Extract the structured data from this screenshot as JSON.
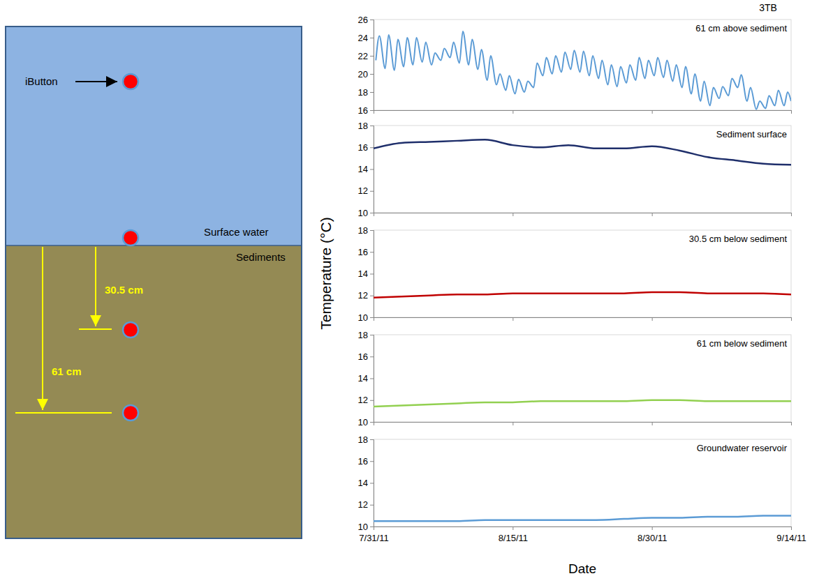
{
  "figure": {
    "title": "3TB",
    "y_label": "Temperature (°C)",
    "x_label": "Date"
  },
  "diagram": {
    "sensor_label": "iButton",
    "water_label": "Surface water",
    "sediment_label": "Sediments",
    "depth_labels": [
      "30.5 cm",
      "61 cm"
    ]
  },
  "chart_data": [
    {
      "type": "line",
      "title": "61 cm above sediment",
      "tick_labels": "y",
      "xlim": [
        "2011-07-31T00:00",
        "2011-09-14T00:00"
      ],
      "xticks": [
        {
          "value": "2011-07-31T00:00",
          "label": "7/31/11"
        },
        {
          "value": "2011-08-15T00:00",
          "label": "8/15/11"
        },
        {
          "value": "2011-08-30T00:00",
          "label": "8/30/11"
        },
        {
          "value": "2011-09-14T00:00",
          "label": "9/14/11"
        }
      ],
      "ylim": [
        16,
        26
      ],
      "yticks": [
        16,
        18,
        20,
        22,
        24,
        26
      ],
      "x": [
        "2011-07-31T06:00",
        "2011-07-31T15:00",
        "2011-08-01T06:00",
        "2011-08-01T15:00",
        "2011-08-02T06:00",
        "2011-08-02T15:00",
        "2011-08-03T06:00",
        "2011-08-03T15:00",
        "2011-08-04T06:00",
        "2011-08-04T15:00",
        "2011-08-05T06:00",
        "2011-08-05T15:00",
        "2011-08-06T06:00",
        "2011-08-06T15:00",
        "2011-08-07T06:00",
        "2011-08-07T15:00",
        "2011-08-08T06:00",
        "2011-08-08T15:00",
        "2011-08-09T06:00",
        "2011-08-09T15:00",
        "2011-08-10T06:00",
        "2011-08-10T15:00",
        "2011-08-11T06:00",
        "2011-08-11T15:00",
        "2011-08-12T06:00",
        "2011-08-12T15:00",
        "2011-08-13T06:00",
        "2011-08-13T15:00",
        "2011-08-14T06:00",
        "2011-08-14T15:00",
        "2011-08-15T06:00",
        "2011-08-15T15:00",
        "2011-08-16T06:00",
        "2011-08-16T15:00",
        "2011-08-17T06:00",
        "2011-08-17T15:00",
        "2011-08-18T06:00",
        "2011-08-18T15:00",
        "2011-08-19T06:00",
        "2011-08-19T15:00",
        "2011-08-20T06:00",
        "2011-08-20T15:00",
        "2011-08-21T06:00",
        "2011-08-21T15:00",
        "2011-08-22T06:00",
        "2011-08-22T15:00",
        "2011-08-23T06:00",
        "2011-08-23T15:00",
        "2011-08-24T06:00",
        "2011-08-24T15:00",
        "2011-08-25T06:00",
        "2011-08-25T15:00",
        "2011-08-26T06:00",
        "2011-08-26T15:00",
        "2011-08-27T06:00",
        "2011-08-27T15:00",
        "2011-08-28T06:00",
        "2011-08-28T15:00",
        "2011-08-29T06:00",
        "2011-08-29T15:00",
        "2011-08-30T06:00",
        "2011-08-30T15:00",
        "2011-08-31T06:00",
        "2011-08-31T15:00",
        "2011-09-01T06:00",
        "2011-09-01T15:00",
        "2011-09-02T06:00",
        "2011-09-02T15:00",
        "2011-09-03T06:00",
        "2011-09-03T15:00",
        "2011-09-04T06:00",
        "2011-09-04T15:00",
        "2011-09-05T06:00",
        "2011-09-05T15:00",
        "2011-09-06T06:00",
        "2011-09-06T15:00",
        "2011-09-07T06:00",
        "2011-09-07T15:00",
        "2011-09-08T06:00",
        "2011-09-08T15:00",
        "2011-09-09T06:00",
        "2011-09-09T15:00",
        "2011-09-10T06:00",
        "2011-09-10T15:00",
        "2011-09-11T06:00",
        "2011-09-11T15:00",
        "2011-09-12T06:00",
        "2011-09-12T15:00",
        "2011-09-13T06:00",
        "2011-09-13T15:00",
        "2011-09-14T00:00"
      ],
      "series": [
        {
          "color": "#5b9bd5",
          "values": [
            21.5,
            24.2,
            20.6,
            24.3,
            20.4,
            23.8,
            20.8,
            24.0,
            21.0,
            24.0,
            21.3,
            23.5,
            21.0,
            22.3,
            21.5,
            22.8,
            21.8,
            23.5,
            21.2,
            24.7,
            21.0,
            23.8,
            20.5,
            22.7,
            19.3,
            22.0,
            18.8,
            20.0,
            18.2,
            19.8,
            17.8,
            19.4,
            18.0,
            19.2,
            18.5,
            21.2,
            19.8,
            21.8,
            20.0,
            22.0,
            20.2,
            22.4,
            20.5,
            22.6,
            20.2,
            22.5,
            19.8,
            22.0,
            19.5,
            21.5,
            18.8,
            21.0,
            18.6,
            20.8,
            19.0,
            21.0,
            19.3,
            21.8,
            19.5,
            21.5,
            19.8,
            21.8,
            19.6,
            21.5,
            19.2,
            21.0,
            18.5,
            20.8,
            17.8,
            20.0,
            17.0,
            19.2,
            16.5,
            18.5,
            17.3,
            18.6,
            17.6,
            19.5,
            18.5,
            19.9,
            17.0,
            18.5,
            16.1,
            17.0,
            16.2,
            17.6,
            16.5,
            18.2,
            16.5,
            18.0,
            17.0
          ]
        }
      ]
    },
    {
      "type": "line",
      "title": "Sediment surface",
      "tick_labels": "y",
      "xlim": [
        "2011-07-31T00:00",
        "2011-09-14T00:00"
      ],
      "xticks": [
        {
          "value": "2011-07-31T00:00",
          "label": "7/31/11"
        },
        {
          "value": "2011-08-15T00:00",
          "label": "8/15/11"
        },
        {
          "value": "2011-08-30T00:00",
          "label": "8/30/11"
        },
        {
          "value": "2011-09-14T00:00",
          "label": "9/14/11"
        }
      ],
      "ylim": [
        10,
        18
      ],
      "yticks": [
        10,
        12,
        14,
        16,
        18
      ],
      "x": [
        "2011-07-31T00:00",
        "2011-08-03T00:00",
        "2011-08-06T00:00",
        "2011-08-09T00:00",
        "2011-08-12T00:00",
        "2011-08-15T00:00",
        "2011-08-18T00:00",
        "2011-08-21T00:00",
        "2011-08-24T00:00",
        "2011-08-27T00:00",
        "2011-08-30T00:00",
        "2011-09-02T00:00",
        "2011-09-05T00:00",
        "2011-09-08T00:00",
        "2011-09-11T00:00",
        "2011-09-14T00:00"
      ],
      "series": [
        {
          "color": "#1f2f6b",
          "values": [
            15.9,
            16.4,
            16.5,
            16.6,
            16.7,
            16.2,
            16.0,
            16.2,
            15.9,
            15.9,
            16.1,
            15.7,
            15.1,
            14.8,
            14.5,
            14.4
          ]
        }
      ]
    },
    {
      "type": "line",
      "title": "30.5 cm below sediment",
      "tick_labels": "y",
      "xlim": [
        "2011-07-31T00:00",
        "2011-09-14T00:00"
      ],
      "xticks": [
        {
          "value": "2011-07-31T00:00",
          "label": "7/31/11"
        },
        {
          "value": "2011-08-15T00:00",
          "label": "8/15/11"
        },
        {
          "value": "2011-08-30T00:00",
          "label": "8/30/11"
        },
        {
          "value": "2011-09-14T00:00",
          "label": "9/14/11"
        }
      ],
      "ylim": [
        10,
        18
      ],
      "yticks": [
        10,
        12,
        14,
        16,
        18
      ],
      "x": [
        "2011-07-31T00:00",
        "2011-08-03T00:00",
        "2011-08-06T00:00",
        "2011-08-09T00:00",
        "2011-08-12T00:00",
        "2011-08-15T00:00",
        "2011-08-18T00:00",
        "2011-08-21T00:00",
        "2011-08-24T00:00",
        "2011-08-27T00:00",
        "2011-08-30T00:00",
        "2011-09-02T00:00",
        "2011-09-05T00:00",
        "2011-09-08T00:00",
        "2011-09-11T00:00",
        "2011-09-14T00:00"
      ],
      "series": [
        {
          "color": "#c00000",
          "values": [
            11.8,
            11.9,
            12.0,
            12.1,
            12.1,
            12.2,
            12.2,
            12.2,
            12.2,
            12.2,
            12.3,
            12.3,
            12.2,
            12.2,
            12.2,
            12.1
          ]
        }
      ]
    },
    {
      "type": "line",
      "title": "61 cm below sediment",
      "tick_labels": "y",
      "xlim": [
        "2011-07-31T00:00",
        "2011-09-14T00:00"
      ],
      "xticks": [
        {
          "value": "2011-07-31T00:00",
          "label": "7/31/11"
        },
        {
          "value": "2011-08-15T00:00",
          "label": "8/15/11"
        },
        {
          "value": "2011-08-30T00:00",
          "label": "8/30/11"
        },
        {
          "value": "2011-09-14T00:00",
          "label": "9/14/11"
        }
      ],
      "ylim": [
        10,
        18
      ],
      "yticks": [
        10,
        12,
        14,
        16,
        18
      ],
      "x": [
        "2011-07-31T00:00",
        "2011-08-03T00:00",
        "2011-08-06T00:00",
        "2011-08-09T00:00",
        "2011-08-12T00:00",
        "2011-08-15T00:00",
        "2011-08-18T00:00",
        "2011-08-21T00:00",
        "2011-08-24T00:00",
        "2011-08-27T00:00",
        "2011-08-30T00:00",
        "2011-09-02T00:00",
        "2011-09-05T00:00",
        "2011-09-08T00:00",
        "2011-09-11T00:00",
        "2011-09-14T00:00"
      ],
      "series": [
        {
          "color": "#92d050",
          "values": [
            11.4,
            11.5,
            11.6,
            11.7,
            11.8,
            11.8,
            11.9,
            11.9,
            11.9,
            11.9,
            12.0,
            12.0,
            11.9,
            11.9,
            11.9,
            11.9
          ]
        }
      ]
    },
    {
      "type": "line",
      "title": "Groundwater reservoir",
      "xlim": [
        "2011-07-31T00:00",
        "2011-09-14T00:00"
      ],
      "xticks": [
        {
          "value": "2011-07-31T00:00",
          "label": "7/31/11"
        },
        {
          "value": "2011-08-15T00:00",
          "label": "8/15/11"
        },
        {
          "value": "2011-08-30T00:00",
          "label": "8/30/11"
        },
        {
          "value": "2011-09-14T00:00",
          "label": "9/14/11"
        }
      ],
      "ylim": [
        10,
        18
      ],
      "yticks": [
        10,
        12,
        14,
        16,
        18
      ],
      "x": [
        "2011-07-31T00:00",
        "2011-08-03T00:00",
        "2011-08-06T00:00",
        "2011-08-09T00:00",
        "2011-08-12T00:00",
        "2011-08-15T00:00",
        "2011-08-18T00:00",
        "2011-08-21T00:00",
        "2011-08-24T00:00",
        "2011-08-27T00:00",
        "2011-08-30T00:00",
        "2011-09-02T00:00",
        "2011-09-05T00:00",
        "2011-09-08T00:00",
        "2011-09-11T00:00",
        "2011-09-14T00:00"
      ],
      "series": [
        {
          "color": "#5b9bd5",
          "values": [
            10.5,
            10.5,
            10.5,
            10.5,
            10.6,
            10.6,
            10.6,
            10.6,
            10.6,
            10.7,
            10.8,
            10.8,
            10.9,
            10.9,
            11.0,
            11.0
          ]
        }
      ]
    }
  ]
}
